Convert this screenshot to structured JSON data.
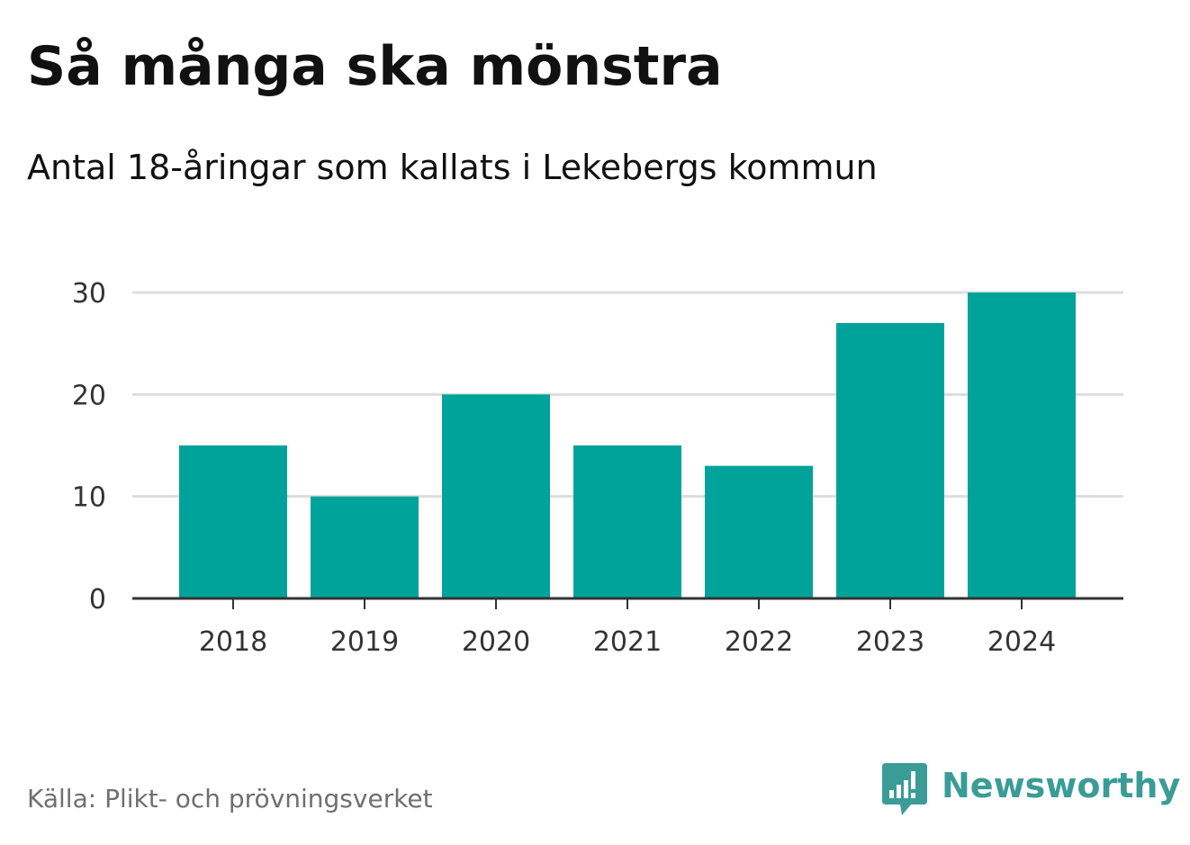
{
  "chart_data": {
    "type": "bar",
    "title": "Så många ska mönstra",
    "subtitle": "Antal 18-åringar som kallats i Lekebergs kommun",
    "categories": [
      "2018",
      "2019",
      "2020",
      "2021",
      "2022",
      "2023",
      "2024"
    ],
    "values": [
      15,
      10,
      20,
      15,
      13,
      27,
      30
    ],
    "xlabel": "",
    "ylabel": "",
    "ylim": [
      0,
      30
    ],
    "yticks": [
      0,
      10,
      20,
      30
    ],
    "grid": true,
    "bar_color": "#00a39a"
  },
  "footer": {
    "source": "Källa: Plikt- och prövningsverket",
    "brand": "Newsworthy",
    "brand_icon": "bar-chart-speech-bubble-icon",
    "brand_color": "#3a9c96"
  }
}
